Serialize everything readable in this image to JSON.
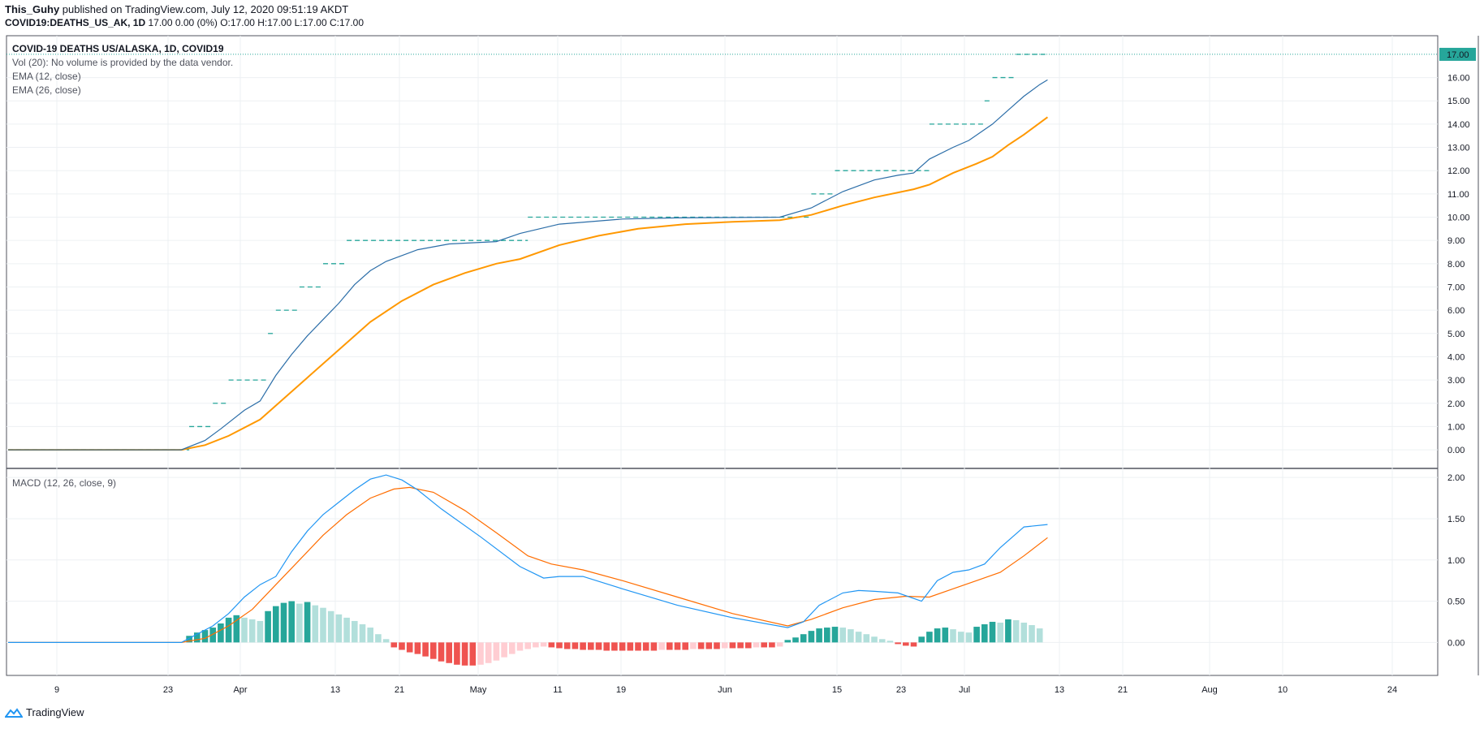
{
  "header": {
    "author": "This_Guhy",
    "published": " published on TradingView.com, July 12, 2020 09:51:19 AKDT",
    "symbol": "COVID19:DEATHS_US_AK, 1D",
    "ohlc": " 17.00 0.00 (0%) O:17.00 H:17.00 L:17.00 C:17.00"
  },
  "legend": {
    "title": "COVID-19 DEATHS US/ALASKA, 1D, COVID19",
    "vol": "Vol (20): No volume is provided by the data vendor.",
    "ema12": "EMA (12, close)",
    "ema26": "EMA (26, close)",
    "macd": "MACD (12, 26, close, 9)"
  },
  "brand": "TradingView",
  "colors": {
    "step": "#26a69a",
    "ema12": "#2c6ea8",
    "ema26": "#ff9800",
    "macd": "#2196f3",
    "signal": "#ff6d00",
    "hist_up_strong": "#26a69a",
    "hist_up_weak": "#b2dfdb",
    "hist_down_strong": "#ef5350",
    "hist_down_weak": "#ffcdd2",
    "last_price": "#26a69a"
  },
  "chart_data": [
    {
      "type": "line",
      "name": "price",
      "y_range": [
        -0.8,
        17.8
      ],
      "yticks": [
        "0.00",
        "1.00",
        "2.00",
        "3.00",
        "4.00",
        "5.00",
        "6.00",
        "7.00",
        "8.00",
        "9.00",
        "10.00",
        "11.00",
        "12.00",
        "13.00",
        "14.00",
        "15.00",
        "16.00"
      ],
      "last_price": "17.00",
      "x_labels": [
        "9",
        "23",
        "Apr",
        "13",
        "21",
        "May",
        "11",
        "19",
        "Jun",
        "15",
        "23",
        "Jul",
        "13",
        "21",
        "Aug",
        "10",
        "24"
      ],
      "deaths_steps": [
        [
          0,
          0
        ],
        [
          23,
          1
        ],
        [
          26,
          2
        ],
        [
          28,
          3
        ],
        [
          33,
          5
        ],
        [
          34,
          6
        ],
        [
          37,
          7
        ],
        [
          40,
          8
        ],
        [
          43,
          9
        ],
        [
          66,
          10
        ],
        [
          102,
          11
        ],
        [
          105,
          12
        ],
        [
          117,
          14
        ],
        [
          124,
          15
        ],
        [
          125,
          16
        ],
        [
          128,
          17
        ]
      ],
      "ema12": [
        [
          0,
          0
        ],
        [
          22,
          0
        ],
        [
          25,
          0.4
        ],
        [
          27,
          0.9
        ],
        [
          30,
          1.7
        ],
        [
          32,
          2.1
        ],
        [
          34,
          3.2
        ],
        [
          36,
          4.1
        ],
        [
          38,
          4.9
        ],
        [
          40,
          5.6
        ],
        [
          42,
          6.3
        ],
        [
          44,
          7.1
        ],
        [
          46,
          7.7
        ],
        [
          48,
          8.1
        ],
        [
          52,
          8.6
        ],
        [
          56,
          8.85
        ],
        [
          62,
          8.95
        ],
        [
          65,
          9.3
        ],
        [
          70,
          9.7
        ],
        [
          78,
          9.92
        ],
        [
          85,
          9.97
        ],
        [
          98,
          10
        ],
        [
          102,
          10.4
        ],
        [
          106,
          11.1
        ],
        [
          110,
          11.6
        ],
        [
          113,
          11.8
        ],
        [
          115,
          11.9
        ],
        [
          117,
          12.5
        ],
        [
          120,
          13.0
        ],
        [
          122,
          13.3
        ],
        [
          125,
          14.0
        ],
        [
          127,
          14.6
        ],
        [
          129,
          15.2
        ],
        [
          131,
          15.7
        ],
        [
          132,
          15.9
        ]
      ],
      "ema26": [
        [
          0,
          0
        ],
        [
          22,
          0
        ],
        [
          25,
          0.2
        ],
        [
          28,
          0.6
        ],
        [
          32,
          1.3
        ],
        [
          35,
          2.2
        ],
        [
          38,
          3.1
        ],
        [
          42,
          4.3
        ],
        [
          46,
          5.5
        ],
        [
          50,
          6.4
        ],
        [
          54,
          7.1
        ],
        [
          58,
          7.6
        ],
        [
          62,
          8.0
        ],
        [
          65,
          8.2
        ],
        [
          70,
          8.8
        ],
        [
          75,
          9.2
        ],
        [
          80,
          9.5
        ],
        [
          86,
          9.7
        ],
        [
          92,
          9.8
        ],
        [
          98,
          9.87
        ],
        [
          102,
          10.1
        ],
        [
          106,
          10.5
        ],
        [
          110,
          10.85
        ],
        [
          115,
          11.2
        ],
        [
          117,
          11.4
        ],
        [
          120,
          11.9
        ],
        [
          123,
          12.3
        ],
        [
          125,
          12.6
        ],
        [
          127,
          13.1
        ],
        [
          129,
          13.55
        ],
        [
          132,
          14.3
        ]
      ]
    },
    {
      "type": "bar",
      "name": "macd",
      "y_range": [
        -0.4,
        2.1
      ],
      "yticks": [
        "0.00",
        "0.50",
        "1.00",
        "1.50",
        "2.00"
      ],
      "macd": [
        [
          0,
          0
        ],
        [
          22,
          0
        ],
        [
          24,
          0.1
        ],
        [
          26,
          0.2
        ],
        [
          28,
          0.35
        ],
        [
          30,
          0.55
        ],
        [
          32,
          0.7
        ],
        [
          34,
          0.8
        ],
        [
          36,
          1.1
        ],
        [
          38,
          1.35
        ],
        [
          40,
          1.55
        ],
        [
          42,
          1.7
        ],
        [
          44,
          1.85
        ],
        [
          46,
          1.98
        ],
        [
          48,
          2.03
        ],
        [
          50,
          1.97
        ],
        [
          52,
          1.85
        ],
        [
          55,
          1.62
        ],
        [
          60,
          1.28
        ],
        [
          65,
          0.92
        ],
        [
          68,
          0.78
        ],
        [
          70,
          0.8
        ],
        [
          73,
          0.8
        ],
        [
          78,
          0.65
        ],
        [
          85,
          0.45
        ],
        [
          92,
          0.3
        ],
        [
          99,
          0.18
        ],
        [
          101,
          0.25
        ],
        [
          103,
          0.45
        ],
        [
          106,
          0.6
        ],
        [
          108,
          0.63
        ],
        [
          110,
          0.62
        ],
        [
          113,
          0.6
        ],
        [
          116,
          0.5
        ],
        [
          118,
          0.75
        ],
        [
          120,
          0.85
        ],
        [
          122,
          0.88
        ],
        [
          124,
          0.95
        ],
        [
          126,
          1.15
        ],
        [
          129,
          1.4
        ],
        [
          132,
          1.43
        ]
      ],
      "signal": [
        [
          0,
          0
        ],
        [
          22,
          0
        ],
        [
          25,
          0.05
        ],
        [
          28,
          0.2
        ],
        [
          31,
          0.4
        ],
        [
          34,
          0.7
        ],
        [
          37,
          1.0
        ],
        [
          40,
          1.3
        ],
        [
          43,
          1.55
        ],
        [
          46,
          1.75
        ],
        [
          49,
          1.86
        ],
        [
          51,
          1.88
        ],
        [
          54,
          1.82
        ],
        [
          58,
          1.6
        ],
        [
          62,
          1.33
        ],
        [
          66,
          1.05
        ],
        [
          69,
          0.95
        ],
        [
          73,
          0.88
        ],
        [
          78,
          0.75
        ],
        [
          85,
          0.55
        ],
        [
          92,
          0.35
        ],
        [
          99,
          0.2
        ],
        [
          102,
          0.28
        ],
        [
          106,
          0.42
        ],
        [
          110,
          0.52
        ],
        [
          114,
          0.56
        ],
        [
          117,
          0.55
        ],
        [
          120,
          0.65
        ],
        [
          123,
          0.75
        ],
        [
          126,
          0.85
        ],
        [
          129,
          1.05
        ],
        [
          132,
          1.27
        ]
      ],
      "histogram": [
        [
          23,
          0.08
        ],
        [
          24,
          0.12
        ],
        [
          25,
          0.15
        ],
        [
          26,
          0.18
        ],
        [
          27,
          0.23
        ],
        [
          28,
          0.3
        ],
        [
          29,
          0.33
        ],
        [
          30,
          0.3
        ],
        [
          31,
          0.28
        ],
        [
          32,
          0.26
        ],
        [
          33,
          0.38
        ],
        [
          34,
          0.44
        ],
        [
          35,
          0.48
        ],
        [
          36,
          0.5
        ],
        [
          37,
          0.47
        ],
        [
          38,
          0.49
        ],
        [
          39,
          0.45
        ],
        [
          40,
          0.42
        ],
        [
          41,
          0.38
        ],
        [
          42,
          0.34
        ],
        [
          43,
          0.3
        ],
        [
          44,
          0.26
        ],
        [
          45,
          0.22
        ],
        [
          46,
          0.18
        ],
        [
          47,
          0.1
        ],
        [
          48,
          0.04
        ],
        [
          49,
          -0.06
        ],
        [
          50,
          -0.09
        ],
        [
          51,
          -0.12
        ],
        [
          52,
          -0.14
        ],
        [
          53,
          -0.17
        ],
        [
          54,
          -0.2
        ],
        [
          55,
          -0.23
        ],
        [
          56,
          -0.25
        ],
        [
          57,
          -0.27
        ],
        [
          58,
          -0.28
        ],
        [
          59,
          -0.28
        ],
        [
          60,
          -0.27
        ],
        [
          61,
          -0.25
        ],
        [
          62,
          -0.22
        ],
        [
          63,
          -0.18
        ],
        [
          64,
          -0.14
        ],
        [
          65,
          -0.1
        ],
        [
          66,
          -0.08
        ],
        [
          67,
          -0.06
        ],
        [
          68,
          -0.05
        ],
        [
          69,
          -0.06
        ],
        [
          70,
          -0.07
        ],
        [
          71,
          -0.08
        ],
        [
          72,
          -0.08
        ],
        [
          73,
          -0.09
        ],
        [
          74,
          -0.09
        ],
        [
          75,
          -0.09
        ],
        [
          76,
          -0.1
        ],
        [
          77,
          -0.1
        ],
        [
          78,
          -0.1
        ],
        [
          79,
          -0.1
        ],
        [
          80,
          -0.1
        ],
        [
          81,
          -0.1
        ],
        [
          82,
          -0.1
        ],
        [
          83,
          -0.09
        ],
        [
          84,
          -0.09
        ],
        [
          85,
          -0.09
        ],
        [
          86,
          -0.09
        ],
        [
          87,
          -0.08
        ],
        [
          88,
          -0.08
        ],
        [
          89,
          -0.08
        ],
        [
          90,
          -0.08
        ],
        [
          91,
          -0.07
        ],
        [
          92,
          -0.07
        ],
        [
          93,
          -0.07
        ],
        [
          94,
          -0.07
        ],
        [
          95,
          -0.06
        ],
        [
          96,
          -0.06
        ],
        [
          97,
          -0.06
        ],
        [
          98,
          -0.05
        ],
        [
          99,
          0.03
        ],
        [
          100,
          0.06
        ],
        [
          101,
          0.1
        ],
        [
          102,
          0.14
        ],
        [
          103,
          0.17
        ],
        [
          104,
          0.18
        ],
        [
          105,
          0.19
        ],
        [
          106,
          0.18
        ],
        [
          107,
          0.16
        ],
        [
          108,
          0.13
        ],
        [
          109,
          0.1
        ],
        [
          110,
          0.07
        ],
        [
          111,
          0.04
        ],
        [
          112,
          0.02
        ],
        [
          113,
          -0.02
        ],
        [
          114,
          -0.04
        ],
        [
          115,
          -0.05
        ],
        [
          116,
          0.07
        ],
        [
          117,
          0.13
        ],
        [
          118,
          0.17
        ],
        [
          119,
          0.18
        ],
        [
          120,
          0.16
        ],
        [
          121,
          0.13
        ],
        [
          122,
          0.12
        ],
        [
          123,
          0.19
        ],
        [
          124,
          0.22
        ],
        [
          125,
          0.25
        ],
        [
          126,
          0.24
        ],
        [
          127,
          0.28
        ],
        [
          128,
          0.27
        ],
        [
          129,
          0.24
        ],
        [
          130,
          0.21
        ],
        [
          131,
          0.17
        ]
      ]
    }
  ]
}
